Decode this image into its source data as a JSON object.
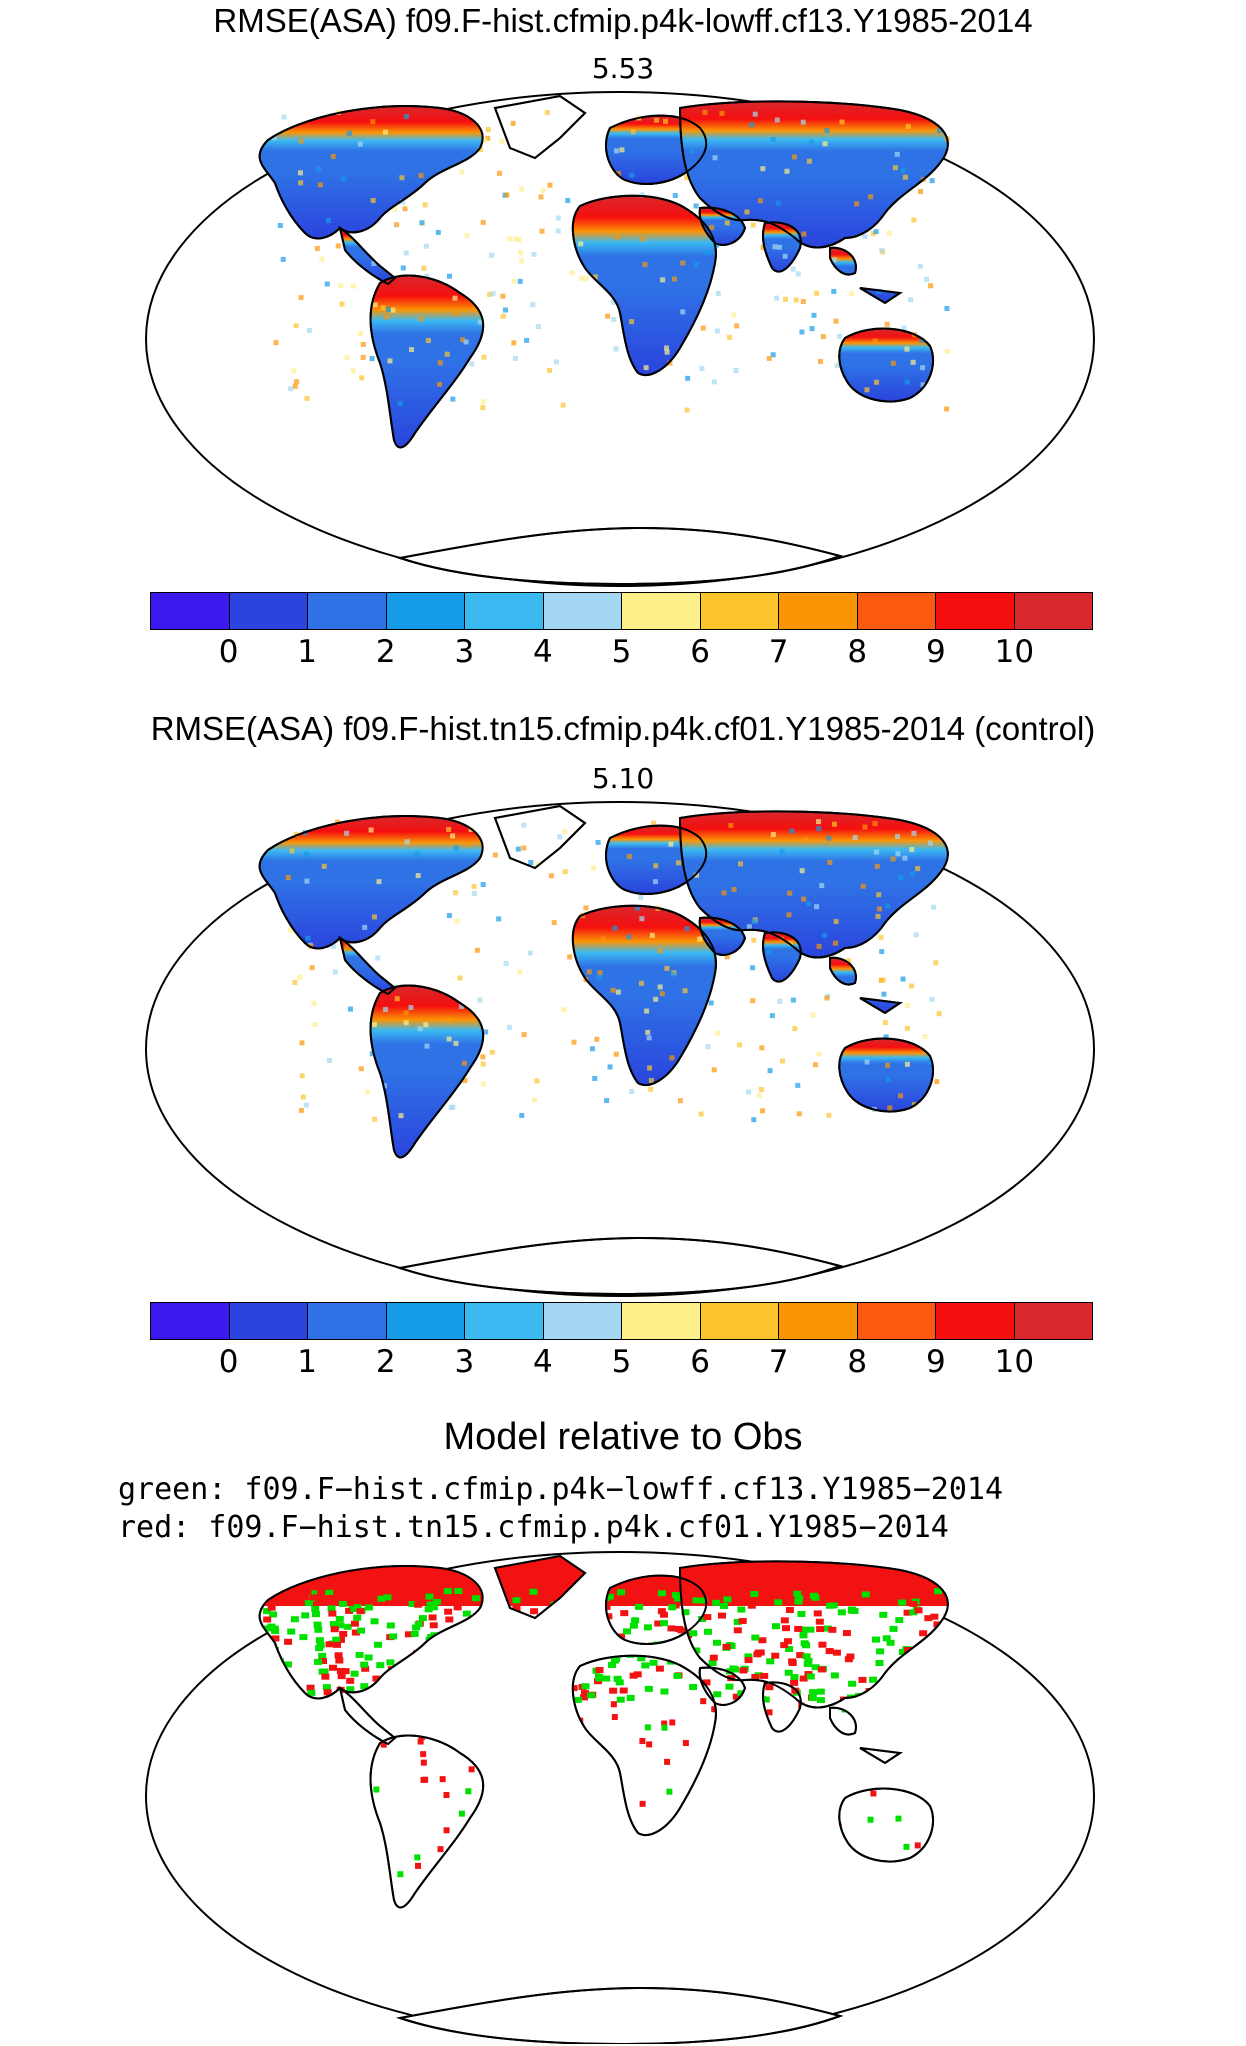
{
  "panels": [
    {
      "title": "RMSE(ASA) f09.F-hist.cfmip.p4k-lowff.cf13.Y1985-2014",
      "value": "5.53"
    },
    {
      "title": "RMSE(ASA) f09.F-hist.tn15.cfmip.p4k.cf01.Y1985-2014 (control)",
      "value": "5.10"
    }
  ],
  "colorbar": {
    "colors": [
      "#3a1aee",
      "#2a44dd",
      "#2f72e6",
      "#169be8",
      "#3bbaf2",
      "#a4d8f2",
      "#fdf08a",
      "#fcc52c",
      "#fb9505",
      "#fc5a10",
      "#f50f0f",
      "#d8282c"
    ],
    "labels": [
      "0",
      "1",
      "2",
      "3",
      "4",
      "5",
      "6",
      "7",
      "8",
      "9",
      "10"
    ]
  },
  "comparison": {
    "title": "Model relative to Obs",
    "legend_green": "green: f09.F−hist.cfmip.p4k−lowff.cf13.Y1985−2014",
    "legend_red": "red: f09.F−hist.tn15.cfmip.p4k.cf01.Y1985−2014",
    "green_color": "#00e000",
    "red_color": "#f21212"
  }
}
